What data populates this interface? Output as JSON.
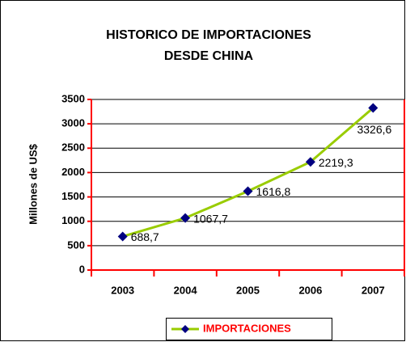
{
  "chart_data": {
    "type": "line",
    "title": [
      "HISTORICO DE IMPORTACIONES",
      "DESDE CHINA"
    ],
    "y_label": "Millones de US$",
    "categories": [
      "2003",
      "2004",
      "2005",
      "2006",
      "2007"
    ],
    "series": [
      {
        "name": "IMPORTACIONES",
        "color": "#99cc00",
        "marker_color": "#000080",
        "values": [
          688.7,
          1067.7,
          1616.8,
          2219.3,
          3326.6
        ],
        "value_labels": [
          "688,7",
          "1067,7",
          "1616,8",
          "2219,3",
          "3326,6"
        ]
      }
    ],
    "ylim": [
      0,
      3500
    ],
    "yticks": [
      0,
      500,
      1000,
      1500,
      2000,
      2500,
      3000,
      3500
    ],
    "grid": true,
    "axis_color": "#ff0000",
    "legend_color": "#ff0000",
    "legend": "bottom"
  }
}
